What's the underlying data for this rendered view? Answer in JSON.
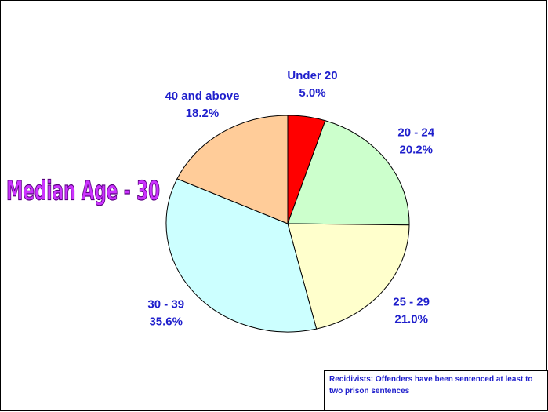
{
  "chart_data": {
    "type": "pie",
    "categories": [
      "Under 20",
      "20 - 24",
      "25 - 29",
      "30 - 39",
      "40 and above"
    ],
    "values": [
      5.0,
      20.2,
      21.0,
      35.6,
      18.2
    ],
    "value_labels": [
      "5.0%",
      "20.2%",
      "21.0%",
      "35.6%",
      "18.2%"
    ],
    "colors": [
      "#ff0000",
      "#ccffcc",
      "#ffffcc",
      "#ccffff",
      "#ffcc99"
    ],
    "annotation": "Median Age - 30",
    "note": "Recidivists:  Offenders have been sentenced at least to two prison sentences"
  }
}
